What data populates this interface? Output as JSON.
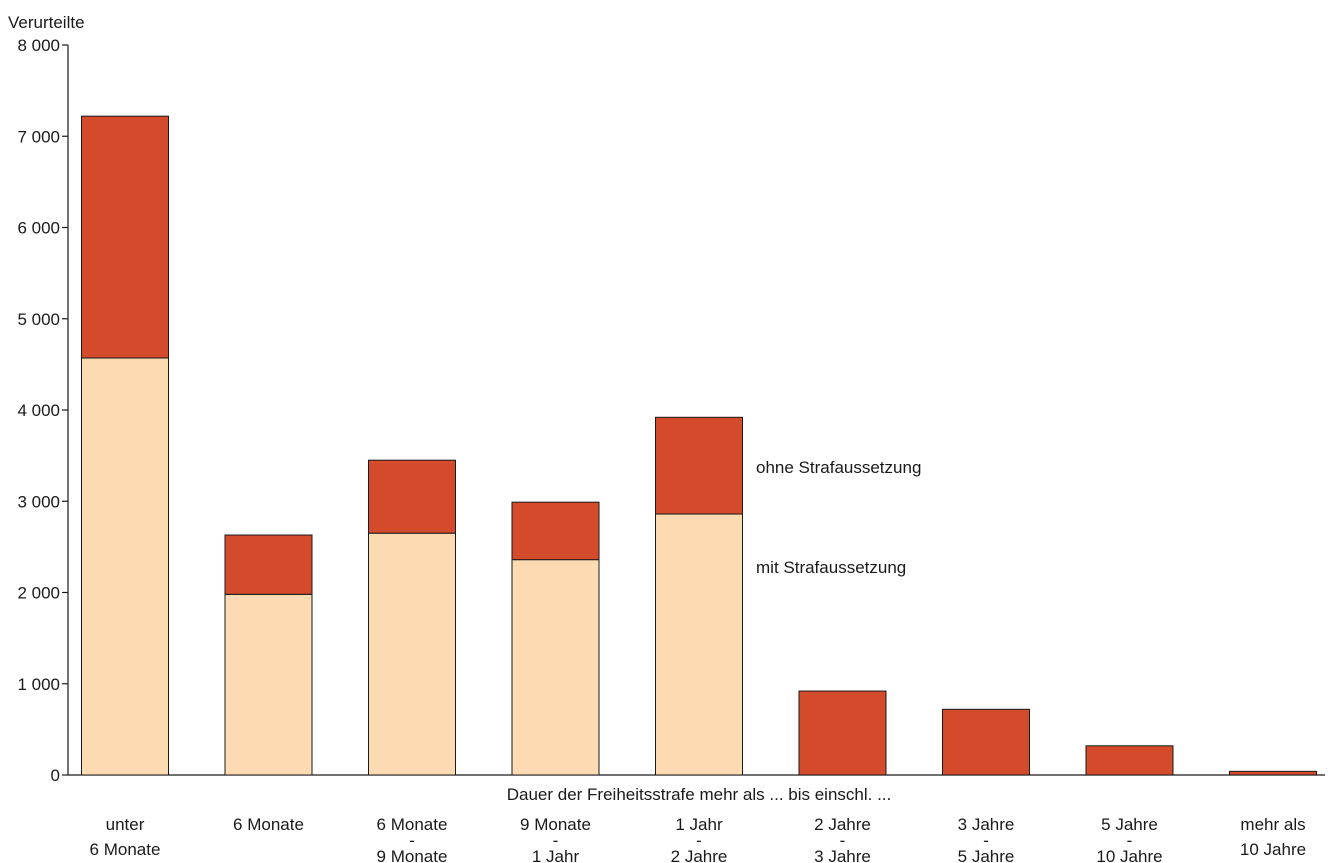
{
  "chart_data": {
    "type": "bar",
    "stacked": true,
    "ylabel": "Verurteilte",
    "xlabel": "Dauer der Freiheitsstrafe mehr als ... bis einschl. ...",
    "ylim": [
      0,
      8000
    ],
    "yticks": [
      0,
      1000,
      2000,
      3000,
      4000,
      5000,
      6000,
      7000,
      8000
    ],
    "ytick_labels": [
      "0",
      "1 000",
      "2 000",
      "3 000",
      "4 000",
      "5 000",
      "6 000",
      "7 000",
      "8 000"
    ],
    "grid": false,
    "categories": [
      [
        "unter",
        "6 Monate"
      ],
      [
        "6 Monate"
      ],
      [
        "6 Monate",
        "-",
        "9 Monate"
      ],
      [
        "9 Monate",
        "-",
        "1 Jahr"
      ],
      [
        "1 Jahr",
        "-",
        "2 Jahre"
      ],
      [
        "2 Jahre",
        "-",
        "3 Jahre"
      ],
      [
        "3 Jahre",
        "-",
        "5 Jahre"
      ],
      [
        "5 Jahre",
        "-",
        "10 Jahre"
      ],
      [
        "mehr als",
        "10 Jahre"
      ]
    ],
    "series": [
      {
        "name": "mit Strafaussetzung",
        "color": "#fcdab2",
        "values": [
          4570,
          1980,
          2650,
          2360,
          2860,
          0,
          0,
          0,
          0
        ]
      },
      {
        "name": "ohne Strafaussetzung",
        "color": "#d34b2a",
        "values": [
          2650,
          650,
          800,
          630,
          1060,
          920,
          720,
          320,
          40
        ]
      }
    ]
  }
}
